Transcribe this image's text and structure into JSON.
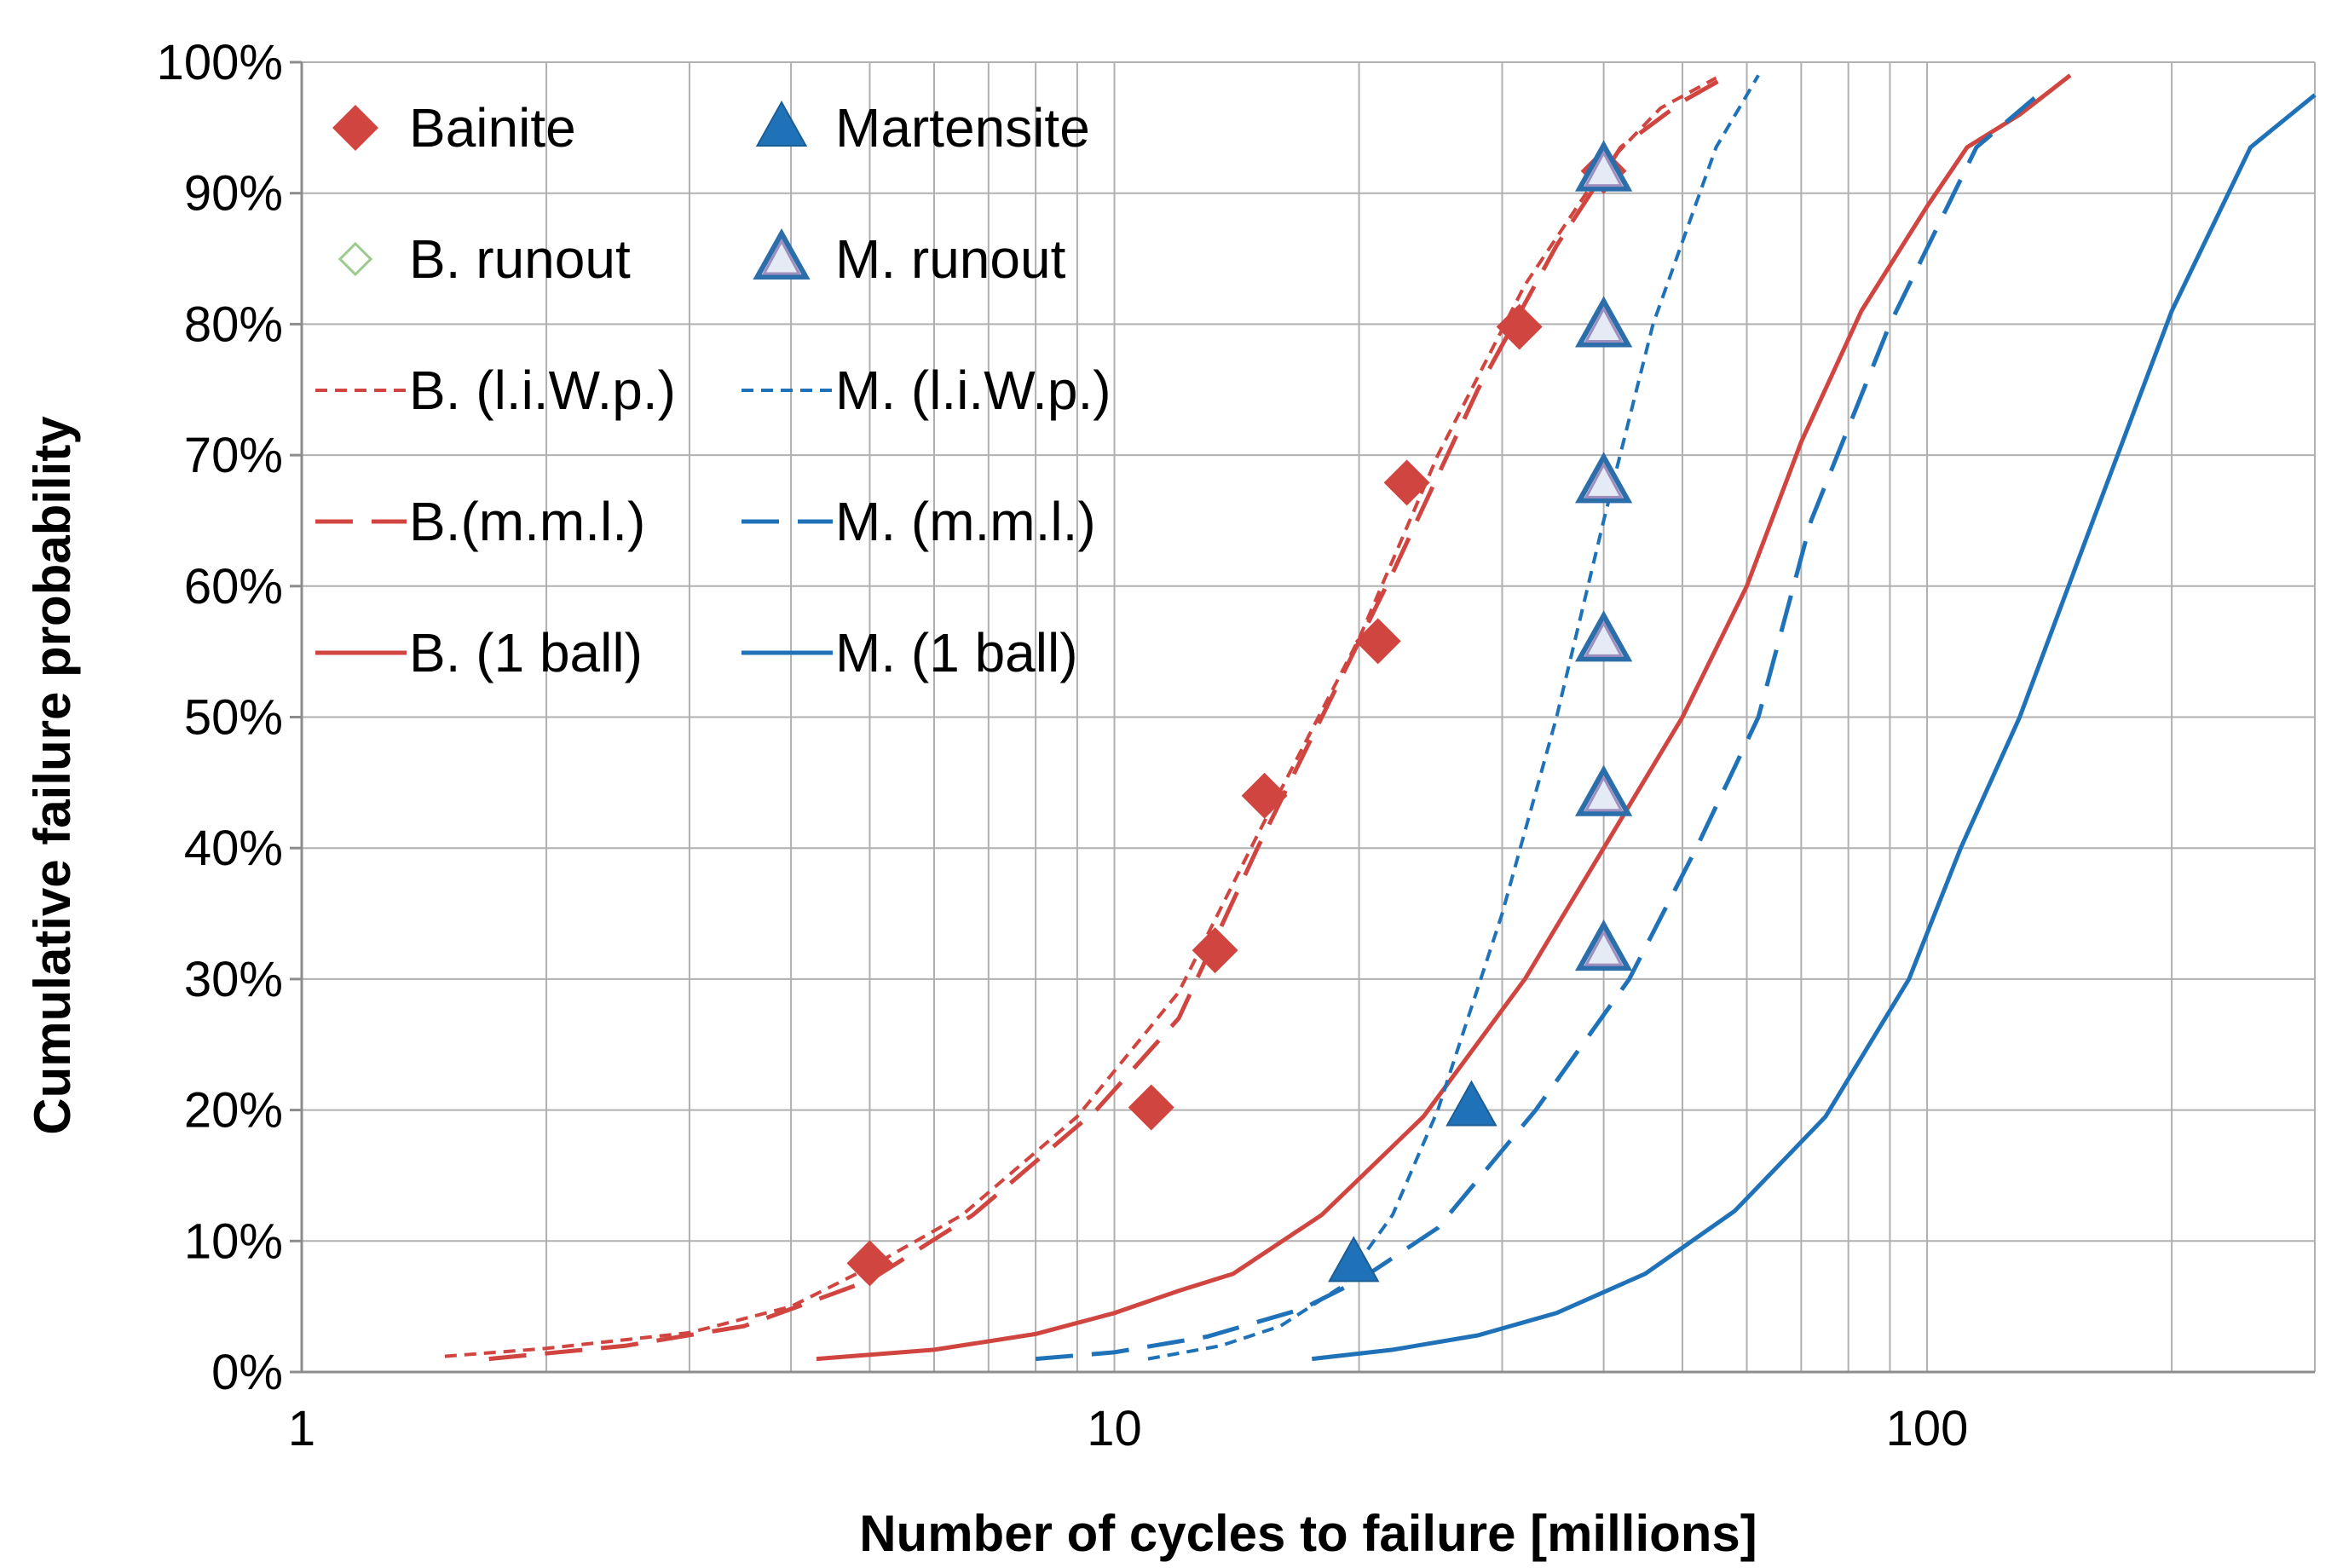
{
  "chart_data": {
    "type": "scatter",
    "xscale": "log",
    "xlim": [
      1,
      300
    ],
    "ylim": [
      0,
      100
    ],
    "xlabel": "Number of cycles to failure [millions]",
    "ylabel": "Cumulative failure probability",
    "x_ticks": [
      1,
      10,
      100
    ],
    "x_tick_labels": [
      "1",
      "10",
      "100"
    ],
    "y_ticks": [
      0,
      10,
      20,
      30,
      40,
      50,
      60,
      70,
      80,
      90,
      100
    ],
    "y_tick_labels": [
      "0%",
      "10%",
      "20%",
      "30%",
      "40%",
      "50%",
      "60%",
      "70%",
      "80%",
      "90%",
      "100%"
    ],
    "grid": true,
    "legend_position": "top-left",
    "colors": {
      "bainite": "#d0453f",
      "martensite": "#1f72b8",
      "runout_b": "#9cc98e",
      "runout_m": "#9f8fbf"
    },
    "series": [
      {
        "key": "bainite",
        "name": "Bainite",
        "kind": "marker",
        "marker": "diamond",
        "points": [
          [
            5.0,
            8.3
          ],
          [
            11.1,
            20.2
          ],
          [
            13.3,
            32.2
          ],
          [
            15.3,
            44.0
          ],
          [
            21.1,
            55.8
          ],
          [
            22.9,
            67.9
          ],
          [
            31.5,
            79.8
          ],
          [
            40.0,
            91.7
          ]
        ]
      },
      {
        "key": "martensite",
        "name": "Martensite",
        "kind": "marker",
        "marker": "triangle",
        "points": [
          [
            19.7,
            8.3
          ],
          [
            27.5,
            20.2
          ],
          [
            40.0,
            91.7
          ]
        ]
      },
      {
        "key": "b_runout",
        "name": "B. runout",
        "kind": "marker",
        "marker": "diamond-open",
        "points": []
      },
      {
        "key": "m_runout",
        "name": "M. runout",
        "kind": "marker",
        "marker": "triangle-open",
        "points": [
          [
            40.0,
            32.2
          ],
          [
            40.0,
            44.0
          ],
          [
            40.0,
            55.8
          ],
          [
            40.0,
            67.9
          ],
          [
            40.0,
            79.8
          ],
          [
            40.0,
            91.7
          ]
        ]
      },
      {
        "key": "b_liwp",
        "name": "B. (l.i.W.p.)",
        "kind": "line",
        "dash": "short",
        "points": [
          [
            1.5,
            1.2
          ],
          [
            2.0,
            1.8
          ],
          [
            3.0,
            3.0
          ],
          [
            4.0,
            5.0
          ],
          [
            5.0,
            8.0
          ],
          [
            6.5,
            12.0
          ],
          [
            9.0,
            19.5
          ],
          [
            12.0,
            29.0
          ],
          [
            15.0,
            41.0
          ],
          [
            20.0,
            56.0
          ],
          [
            25.0,
            70.0
          ],
          [
            32.0,
            83.0
          ],
          [
            40.0,
            92.0
          ],
          [
            47.0,
            96.5
          ],
          [
            55.0,
            98.8
          ]
        ]
      },
      {
        "key": "b_mml",
        "name": "B.(m.m.l.)",
        "kind": "line",
        "dash": "long",
        "points": [
          [
            1.7,
            1.0
          ],
          [
            2.5,
            2.0
          ],
          [
            3.5,
            3.5
          ],
          [
            5.0,
            7.0
          ],
          [
            6.7,
            12.0
          ],
          [
            9.5,
            20.0
          ],
          [
            12.0,
            27.0
          ],
          [
            15.0,
            40.0
          ],
          [
            18.0,
            50.0
          ],
          [
            22.0,
            61.0
          ],
          [
            28.0,
            75.0
          ],
          [
            35.0,
            86.0
          ],
          [
            42.0,
            93.5
          ],
          [
            50.0,
            97.0
          ],
          [
            57.0,
            99.0
          ]
        ]
      },
      {
        "key": "b_1ball",
        "name": "B. (1 ball)",
        "kind": "line",
        "dash": "solid",
        "points": [
          [
            4.3,
            1.0
          ],
          [
            6.0,
            1.7
          ],
          [
            8.0,
            2.9
          ],
          [
            10.0,
            4.5
          ],
          [
            12.0,
            6.2
          ],
          [
            14.0,
            7.5
          ],
          [
            18.0,
            12.0
          ],
          [
            24.0,
            19.5
          ],
          [
            32.0,
            30.0
          ],
          [
            40.0,
            40.0
          ],
          [
            50.0,
            50.0
          ],
          [
            60.0,
            60.0
          ],
          [
            70.0,
            71.0
          ],
          [
            83.0,
            81.0
          ],
          [
            100.0,
            89.0
          ],
          [
            112.0,
            93.5
          ],
          [
            130.0,
            96.0
          ],
          [
            150.0,
            99.0
          ]
        ]
      },
      {
        "key": "m_liwp",
        "name": "M. (l.i.W.p.)",
        "kind": "line",
        "dash": "short",
        "points": [
          [
            11.0,
            1.0
          ],
          [
            13.5,
            2.0
          ],
          [
            16.0,
            3.5
          ],
          [
            19.0,
            6.5
          ],
          [
            22.0,
            12.0
          ],
          [
            25.0,
            20.0
          ],
          [
            30.0,
            35.0
          ],
          [
            35.0,
            50.0
          ],
          [
            40.0,
            65.0
          ],
          [
            46.0,
            80.0
          ],
          [
            55.0,
            93.5
          ],
          [
            62.0,
            99.0
          ]
        ]
      },
      {
        "key": "m_mml",
        "name": "M. (m.m.l.)",
        "kind": "line",
        "dash": "long",
        "points": [
          [
            8.0,
            1.0
          ],
          [
            10.0,
            1.5
          ],
          [
            13.0,
            2.7
          ],
          [
            17.0,
            4.8
          ],
          [
            20.0,
            7.0
          ],
          [
            25.0,
            11.0
          ],
          [
            33.0,
            20.0
          ],
          [
            43.0,
            30.0
          ],
          [
            52.0,
            40.0
          ],
          [
            62.0,
            50.0
          ],
          [
            72.0,
            65.0
          ],
          [
            90.0,
            80.0
          ],
          [
            115.0,
            93.5
          ],
          [
            140.0,
            98.0
          ]
        ]
      },
      {
        "key": "m_1ball",
        "name": "M. (1 ball)",
        "kind": "line",
        "dash": "solid",
        "points": [
          [
            17.5,
            1.0
          ],
          [
            22.0,
            1.7
          ],
          [
            28.0,
            2.8
          ],
          [
            35.0,
            4.5
          ],
          [
            45.0,
            7.5
          ],
          [
            58.0,
            12.3
          ],
          [
            75.0,
            19.5
          ],
          [
            95.0,
            30.0
          ],
          [
            110.0,
            40.0
          ],
          [
            130.0,
            50.0
          ],
          [
            160.0,
            65.0
          ],
          [
            200.0,
            81.0
          ],
          [
            250.0,
            93.5
          ],
          [
            300.0,
            97.5
          ]
        ]
      }
    ],
    "legend": [
      {
        "key": "bainite",
        "label": "Bainite",
        "col": 0,
        "row": 0
      },
      {
        "key": "martensite",
        "label": "Martensite",
        "col": 1,
        "row": 0
      },
      {
        "key": "b_runout",
        "label": "B. runout",
        "col": 0,
        "row": 1
      },
      {
        "key": "m_runout",
        "label": "M. runout",
        "col": 1,
        "row": 1
      },
      {
        "key": "b_liwp",
        "label": "B. (l.i.W.p.)",
        "col": 0,
        "row": 2
      },
      {
        "key": "m_liwp",
        "label": "M. (l.i.W.p.)",
        "col": 1,
        "row": 2
      },
      {
        "key": "b_mml",
        "label": "B.(m.m.l.)",
        "col": 0,
        "row": 3
      },
      {
        "key": "m_mml",
        "label": "M. (m.m.l.)",
        "col": 1,
        "row": 3
      },
      {
        "key": "b_1ball",
        "label": "B. (1 ball)",
        "col": 0,
        "row": 4
      },
      {
        "key": "m_1ball",
        "label": "M. (1 ball)",
        "col": 1,
        "row": 4
      }
    ]
  }
}
